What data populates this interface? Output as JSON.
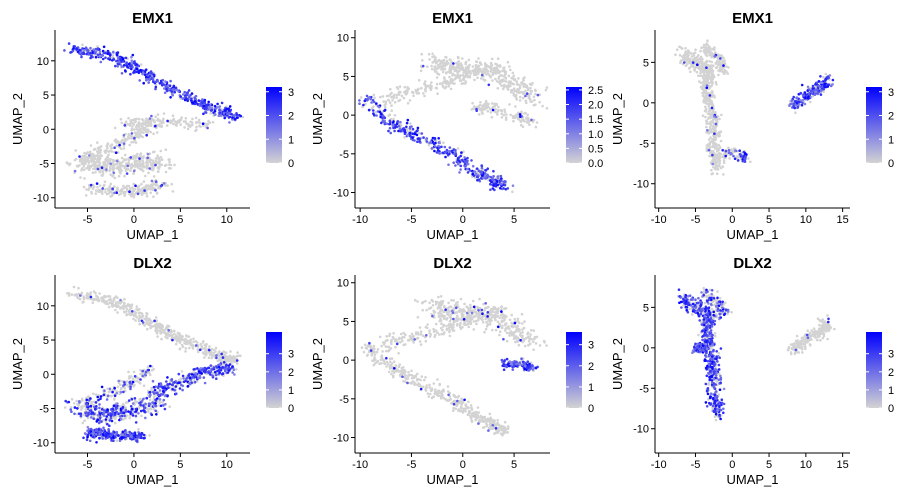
{
  "chart_data": [
    {
      "type": "scatter",
      "title": "EMX1",
      "xlabel": "UMAP_1",
      "ylabel": "UMAP_2",
      "xlim": [
        -8.5,
        12.5
      ],
      "ylim": [
        -11.5,
        14.5
      ],
      "xticks": [
        -5,
        0,
        5,
        10
      ],
      "yticks": [
        -10,
        -5,
        0,
        5,
        10
      ],
      "legend": {
        "position": "right",
        "min": 0,
        "max": 3.2,
        "ticks": [
          0,
          1,
          2,
          3
        ],
        "low_color": "#d3d3d3",
        "high_color": "#0000ff"
      },
      "grid": false,
      "regions": [
        {
          "path": [
            [
              -6.5,
              11.5
            ],
            [
              -3,
              11
            ],
            [
              0,
              9
            ],
            [
              3,
              6.5
            ],
            [
              6,
              4.5
            ],
            [
              9,
              2.8
            ],
            [
              11,
              2
            ]
          ],
          "spread": 0.8,
          "n": 500,
          "expr": 0.9
        },
        {
          "path": [
            [
              -1,
              1
            ],
            [
              2,
              1
            ],
            [
              5,
              1
            ],
            [
              8,
              0.5
            ]
          ],
          "spread": 0.8,
          "n": 140,
          "expr": 0.05
        },
        {
          "path": [
            [
              2,
              1
            ],
            [
              0,
              -1
            ],
            [
              -3,
              -3
            ],
            [
              -6,
              -4.5
            ]
          ],
          "spread": 0.9,
          "n": 200,
          "expr": 0.05
        },
        {
          "path": [
            [
              -6,
              -5
            ],
            [
              -3,
              -5.5
            ],
            [
              0,
              -5
            ],
            [
              3,
              -5
            ]
          ],
          "spread": 1.3,
          "n": 350,
          "expr": 0.05
        },
        {
          "path": [
            [
              -5,
              -8.5
            ],
            [
              -2,
              -9
            ],
            [
              1,
              -9
            ],
            [
              3,
              -8
            ]
          ],
          "spread": 0.8,
          "n": 200,
          "expr": 0.05
        }
      ]
    },
    {
      "type": "scatter",
      "title": "EMX1",
      "xlabel": "UMAP_1",
      "ylabel": "UMAP_2",
      "xlim": [
        -10.5,
        8.5
      ],
      "ylim": [
        -12,
        11
      ],
      "xticks": [
        -10,
        -5,
        0,
        5
      ],
      "yticks": [
        -10,
        -5,
        0,
        5,
        10
      ],
      "legend": {
        "position": "right",
        "min": 0,
        "max": 2.6,
        "ticks": [
          0.0,
          0.5,
          1.0,
          1.5,
          2.0,
          2.5
        ],
        "tick_labels": [
          "0.0",
          "0.5",
          "1.0",
          "1.5",
          "2.0",
          "2.5"
        ],
        "low_color": "#d3d3d3",
        "high_color": "#0000ff"
      },
      "grid": false,
      "regions": [
        {
          "path": [
            [
              -9.5,
              2
            ],
            [
              -7,
              -1
            ],
            [
              -4,
              -3
            ],
            [
              -1,
              -5
            ],
            [
              1,
              -7
            ],
            [
              3,
              -8.5
            ],
            [
              4,
              -9
            ]
          ],
          "spread": 0.8,
          "n": 450,
          "expr": 0.75
        },
        {
          "path": [
            [
              -8,
              2
            ],
            [
              -5,
              3
            ],
            [
              -2,
              4
            ],
            [
              0,
              5
            ],
            [
              2,
              6
            ],
            [
              4,
              6
            ]
          ],
          "spread": 0.9,
          "n": 220,
          "expr": 0.02
        },
        {
          "path": [
            [
              -3,
              7
            ],
            [
              -1,
              6
            ],
            [
              2,
              6
            ],
            [
              5,
              4
            ],
            [
              7,
              2
            ]
          ],
          "spread": 1.3,
          "n": 350,
          "expr": 0.02
        },
        {
          "path": [
            [
              1,
              1
            ],
            [
              3,
              1
            ],
            [
              5,
              0
            ],
            [
              7,
              -1
            ]
          ],
          "spread": 0.7,
          "n": 140,
          "expr": 0.02
        }
      ]
    },
    {
      "type": "scatter",
      "title": "EMX1",
      "xlabel": "UMAP_1",
      "ylabel": "UMAP_2",
      "xlim": [
        -10.5,
        16
      ],
      "ylim": [
        -13,
        9
      ],
      "xticks": [
        -10,
        -5,
        0,
        5,
        10,
        15
      ],
      "yticks": [
        -10,
        -5,
        0,
        5
      ],
      "legend": {
        "position": "right",
        "min": 0,
        "max": 3.2,
        "ticks": [
          0,
          1,
          2,
          3
        ],
        "low_color": "#d3d3d3",
        "high_color": "#0000ff"
      },
      "grid": false,
      "regions": [
        {
          "path": [
            [
              -7,
              6
            ],
            [
              -5,
              5
            ],
            [
              -3,
              4
            ],
            [
              -3.5,
              2
            ],
            [
              -3,
              0
            ],
            [
              -2.5,
              -3
            ],
            [
              -2.5,
              -6
            ],
            [
              -2,
              -8
            ]
          ],
          "spread": 0.9,
          "n": 600,
          "expr": 0.03
        },
        {
          "path": [
            [
              -4,
              7
            ],
            [
              -2,
              5.5
            ],
            [
              -1,
              4
            ]
          ],
          "spread": 0.7,
          "n": 120,
          "expr": 0.03
        },
        {
          "path": [
            [
              -1,
              -6
            ],
            [
              1,
              -6.5
            ],
            [
              2,
              -7
            ]
          ],
          "spread": 0.6,
          "n": 80,
          "expr": 0.4
        },
        {
          "path": [
            [
              8,
              -0.5
            ],
            [
              10,
              1
            ],
            [
              12,
              2
            ],
            [
              13,
              3
            ]
          ],
          "spread": 0.7,
          "n": 220,
          "expr": 0.65
        }
      ]
    },
    {
      "type": "scatter",
      "title": "DLX2",
      "xlabel": "UMAP_1",
      "ylabel": "UMAP_2",
      "xlim": [
        -8.5,
        12.5
      ],
      "ylim": [
        -11.5,
        14.5
      ],
      "xticks": [
        -5,
        0,
        5,
        10
      ],
      "yticks": [
        -10,
        -5,
        0,
        5,
        10
      ],
      "legend": {
        "position": "right",
        "min": 0,
        "max": 4.2,
        "ticks": [
          0,
          1,
          2,
          3
        ],
        "low_color": "#d3d3d3",
        "high_color": "#0000ff"
      },
      "grid": false,
      "regions": [
        {
          "path": [
            [
              -6.5,
              11.5
            ],
            [
              -3,
              11
            ],
            [
              0,
              9
            ],
            [
              3,
              6.5
            ],
            [
              6,
              4.5
            ],
            [
              9,
              2.8
            ],
            [
              11,
              2
            ]
          ],
          "spread": 0.8,
          "n": 500,
          "expr": 0.02
        },
        {
          "path": [
            [
              2,
              -3
            ],
            [
              5,
              -1
            ],
            [
              8,
              0.5
            ],
            [
              10.5,
              1
            ]
          ],
          "spread": 0.9,
          "n": 300,
          "expr": 0.7
        },
        {
          "path": [
            [
              -6,
              -5
            ],
            [
              -3,
              -6
            ],
            [
              0,
              -5
            ],
            [
              3,
              -4
            ]
          ],
          "spread": 1.3,
          "n": 350,
          "expr": 0.55
        },
        {
          "path": [
            [
              -5,
              -8.5
            ],
            [
              -2,
              -9
            ],
            [
              1,
              -9
            ]
          ],
          "spread": 0.7,
          "n": 250,
          "expr": 0.85
        },
        {
          "path": [
            [
              2,
              1
            ],
            [
              0,
              -1
            ],
            [
              -3,
              -3
            ],
            [
              -6,
              -4.5
            ]
          ],
          "spread": 0.8,
          "n": 160,
          "expr": 0.3
        }
      ]
    },
    {
      "type": "scatter",
      "title": "DLX2",
      "xlabel": "UMAP_1",
      "ylabel": "UMAP_2",
      "xlim": [
        -10.5,
        8.5
      ],
      "ylim": [
        -12,
        11
      ],
      "xticks": [
        -10,
        -5,
        0,
        5
      ],
      "yticks": [
        -10,
        -5,
        0,
        5,
        10
      ],
      "legend": {
        "position": "right",
        "min": 0,
        "max": 3.6,
        "ticks": [
          0,
          1,
          2,
          3
        ],
        "low_color": "#d3d3d3",
        "high_color": "#0000ff"
      },
      "grid": false,
      "regions": [
        {
          "path": [
            [
              -9.5,
              2
            ],
            [
              -7,
              -1
            ],
            [
              -4,
              -3
            ],
            [
              -1,
              -5
            ],
            [
              1,
              -7
            ],
            [
              3,
              -8.5
            ],
            [
              4,
              -9
            ]
          ],
          "spread": 0.8,
          "n": 420,
          "expr": 0.03
        },
        {
          "path": [
            [
              -8,
              2
            ],
            [
              -5,
              3
            ],
            [
              -2,
              4
            ],
            [
              0,
              5
            ],
            [
              2,
              6
            ],
            [
              4,
              6
            ]
          ],
          "spread": 0.9,
          "n": 220,
          "expr": 0.05
        },
        {
          "path": [
            [
              -3,
              7
            ],
            [
              -1,
              6
            ],
            [
              2,
              6
            ],
            [
              5,
              4
            ],
            [
              7,
              2
            ]
          ],
          "spread": 1.3,
          "n": 350,
          "expr": 0.05
        },
        {
          "path": [
            [
              4,
              -0.5
            ],
            [
              5.5,
              -0.5
            ],
            [
              7,
              -1
            ]
          ],
          "spread": 0.5,
          "n": 110,
          "expr": 0.8
        }
      ]
    },
    {
      "type": "scatter",
      "title": "DLX2",
      "xlabel": "UMAP_1",
      "ylabel": "UMAP_2",
      "xlim": [
        -10.5,
        16
      ],
      "ylim": [
        -13,
        9
      ],
      "xticks": [
        -10,
        -5,
        0,
        5,
        10,
        15
      ],
      "yticks": [
        -10,
        -5,
        0,
        5
      ],
      "legend": {
        "position": "right",
        "min": 0,
        "max": 4.2,
        "ticks": [
          0,
          1,
          2,
          3
        ],
        "low_color": "#d3d3d3",
        "high_color": "#0000ff"
      },
      "grid": false,
      "regions": [
        {
          "path": [
            [
              -7,
              6
            ],
            [
              -5,
              5
            ],
            [
              -3,
              4
            ],
            [
              -3.5,
              2
            ],
            [
              -3,
              0
            ],
            [
              -2.5,
              -3
            ],
            [
              -2.5,
              -6
            ],
            [
              -2,
              -8
            ]
          ],
          "spread": 0.9,
          "n": 600,
          "expr": 0.7
        },
        {
          "path": [
            [
              -5,
              0
            ],
            [
              -3.5,
              0
            ]
          ],
          "spread": 0.6,
          "n": 120,
          "expr": 0.8
        },
        {
          "path": [
            [
              -4,
              7
            ],
            [
              -2,
              5.5
            ],
            [
              -1,
              4
            ]
          ],
          "spread": 0.7,
          "n": 120,
          "expr": 0.35
        },
        {
          "path": [
            [
              8,
              -0.5
            ],
            [
              10,
              1
            ],
            [
              12,
              2
            ],
            [
              13,
              3
            ]
          ],
          "spread": 0.7,
          "n": 220,
          "expr": 0.02
        }
      ]
    }
  ]
}
